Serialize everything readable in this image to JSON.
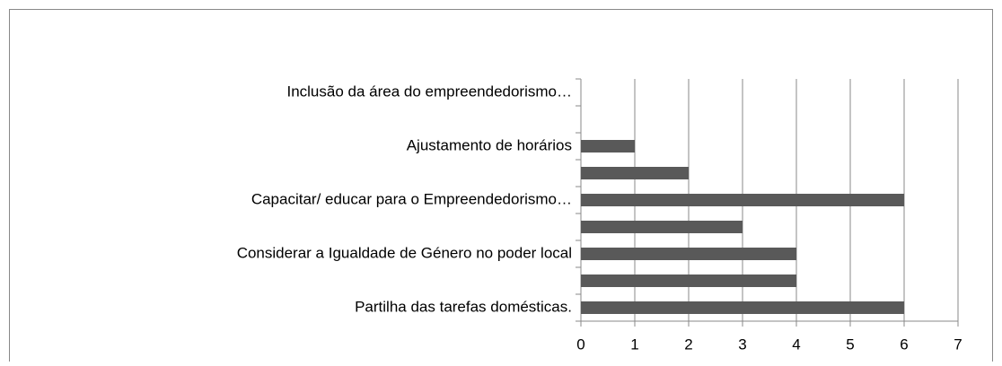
{
  "chart_data": {
    "type": "barh",
    "categories": [
      "Partilha das tarefas domésticas.",
      null,
      "Considerar a Igualdade de Género no poder local",
      null,
      "Capacitar/ educar para o Empreendedorismo…",
      null,
      "Ajustamento de horários",
      null,
      "Inclusão da área do empreendedorismo…"
    ],
    "values": [
      6,
      4,
      4,
      3,
      6,
      2,
      1,
      0,
      0
    ],
    "color": "#595959",
    "xlim": [
      0,
      7
    ],
    "xticks": [
      0,
      1,
      2,
      3,
      4,
      5,
      6,
      7
    ],
    "grid": true
  }
}
